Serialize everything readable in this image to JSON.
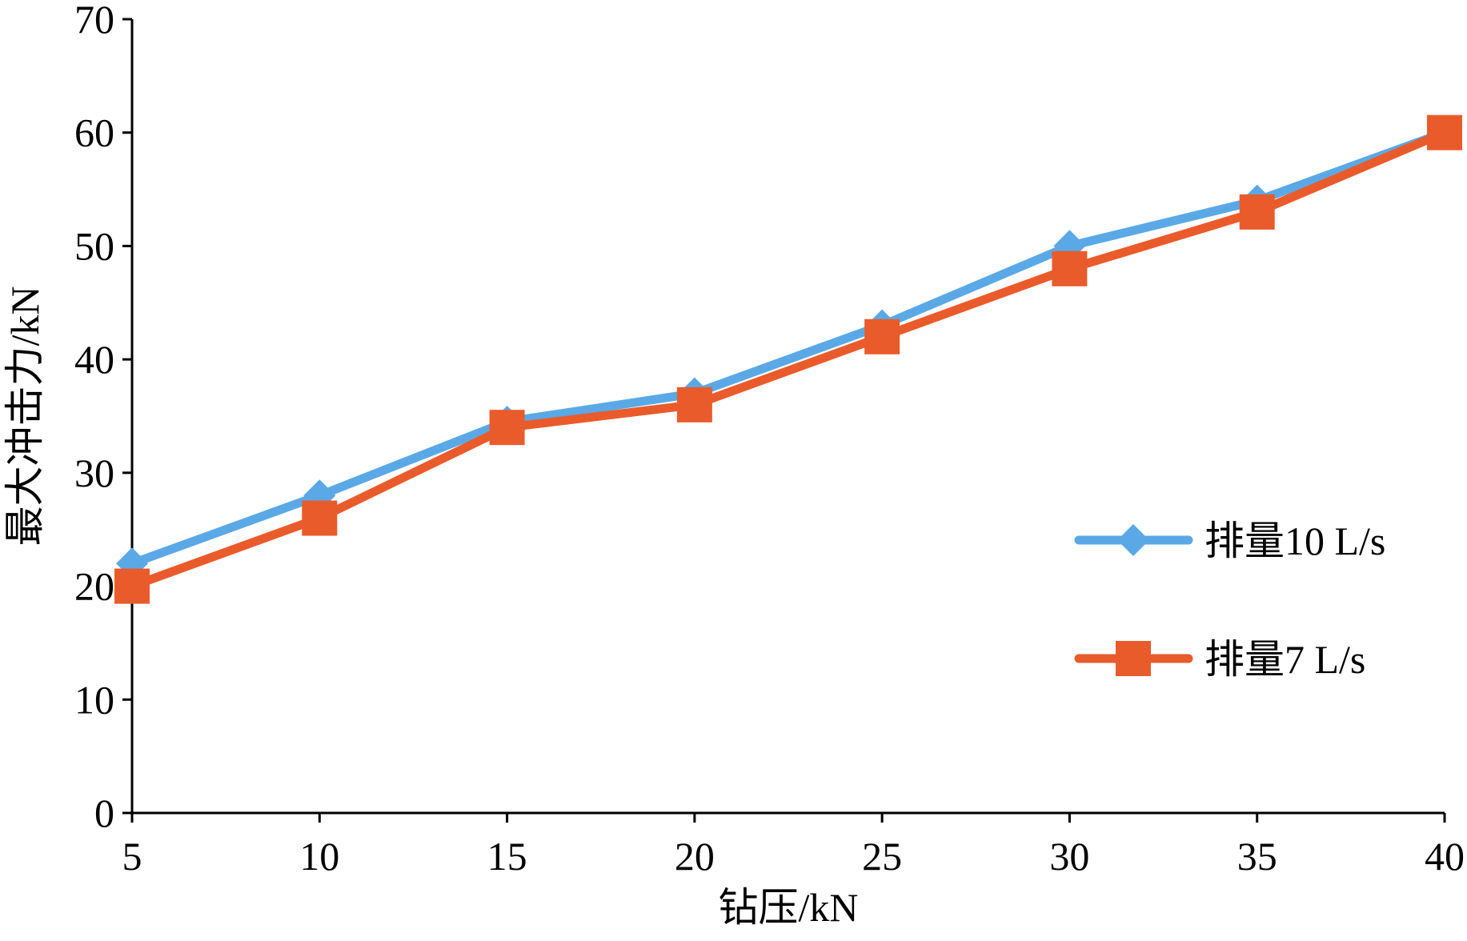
{
  "chart_data": {
    "type": "line",
    "title": "",
    "xlabel": "钻压/kN",
    "ylabel": "最大冲击力/kN",
    "x": [
      5,
      10,
      15,
      20,
      25,
      30,
      35,
      40
    ],
    "x_tick_labels": [
      "5",
      "10",
      "15",
      "20",
      "25",
      "30",
      "35",
      "40"
    ],
    "y_tick_labels": [
      "0",
      "10",
      "20",
      "30",
      "40",
      "50",
      "60",
      "70"
    ],
    "ylim": [
      0,
      70
    ],
    "grid": false,
    "legend_position": "right",
    "series": [
      {
        "name": "排量10 L/s",
        "color": "#5aa9e6",
        "marker": "diamond",
        "values": [
          22,
          28,
          34.5,
          37,
          43,
          50,
          54,
          60
        ]
      },
      {
        "name": "排量7 L/s",
        "color": "#ea5b2b",
        "marker": "square",
        "values": [
          20,
          26,
          34,
          36,
          42,
          48,
          53,
          60
        ]
      }
    ]
  }
}
